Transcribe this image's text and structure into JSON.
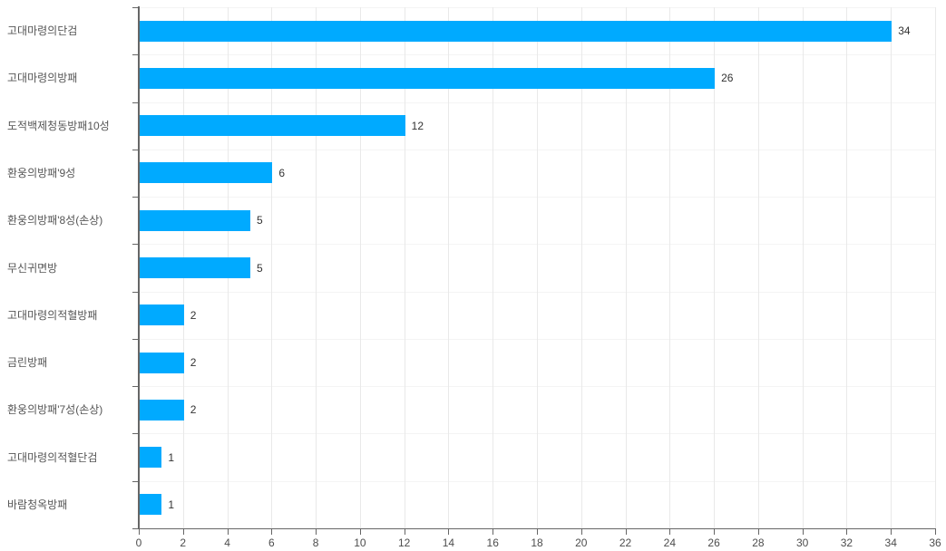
{
  "chart_data": {
    "type": "bar",
    "orientation": "horizontal",
    "title": "",
    "xlabel": "",
    "ylabel": "",
    "categories": [
      "고대마령의단검",
      "고대마령의방패",
      "도적백제청동방패10성",
      "환웅의방패'9성",
      "환웅의방패'8성(손상)",
      "무신귀면방",
      "고대마령의적혈방패",
      "금린방패",
      "환웅의방패'7성(손상)",
      "고대마령의적혈단검",
      "바람청옥방패"
    ],
    "values": [
      34,
      26,
      12,
      6,
      5,
      5,
      2,
      2,
      2,
      1,
      1
    ],
    "value_labels": [
      "34",
      "26",
      "12",
      "6",
      "5",
      "5",
      "2",
      "2",
      "2",
      "1",
      "1"
    ],
    "xlim": [
      0,
      36
    ],
    "x_ticks": [
      "0",
      "2",
      "4",
      "6",
      "8",
      "10",
      "12",
      "14",
      "16",
      "18",
      "20",
      "22",
      "24",
      "26",
      "28",
      "30",
      "32",
      "34",
      "36"
    ],
    "grid": true,
    "legend": false
  },
  "colors": {
    "background": "#ffffff",
    "bar": "#00aaff",
    "axis": "#666666",
    "grid_vertical": "#e9e9e9",
    "grid_horizontal": "#f4f4f4",
    "category_label": "#555555",
    "value_label": "#333333",
    "tick_label": "#4d4d4d"
  }
}
